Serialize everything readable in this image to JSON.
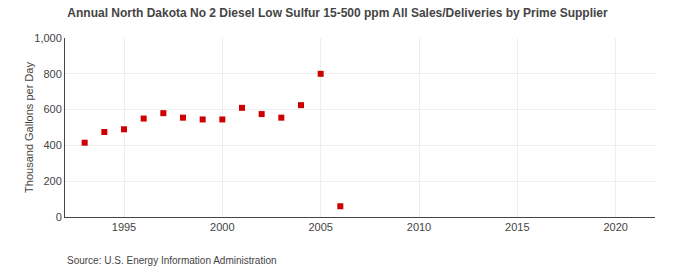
{
  "chart_data": {
    "type": "scatter",
    "title": "Annual North Dakota No 2 Diesel Low Sulfur 15-500 ppm All Sales/Deliveries by Prime Supplier",
    "ylabel": "Thousand Gallons per Day",
    "annotations": [
      "Source: U.S. Energy Information Administration"
    ],
    "x": [
      1993,
      1994,
      1995,
      1996,
      1997,
      1998,
      1999,
      2000,
      2001,
      2002,
      2003,
      2004,
      2005,
      2006
    ],
    "values": [
      415,
      475,
      490,
      550,
      580,
      555,
      545,
      545,
      610,
      575,
      555,
      625,
      800,
      60
    ],
    "color": "#cc0000",
    "marker": "square",
    "xlim": [
      1992,
      2022
    ],
    "xticks": [
      1995,
      2000,
      2005,
      2010,
      2015,
      2020
    ],
    "ylim": [
      0,
      1000
    ],
    "yticks": [
      0,
      200,
      400,
      600,
      800,
      {
        "value": 1000,
        "label": "1,000"
      }
    ],
    "grid": true
  }
}
